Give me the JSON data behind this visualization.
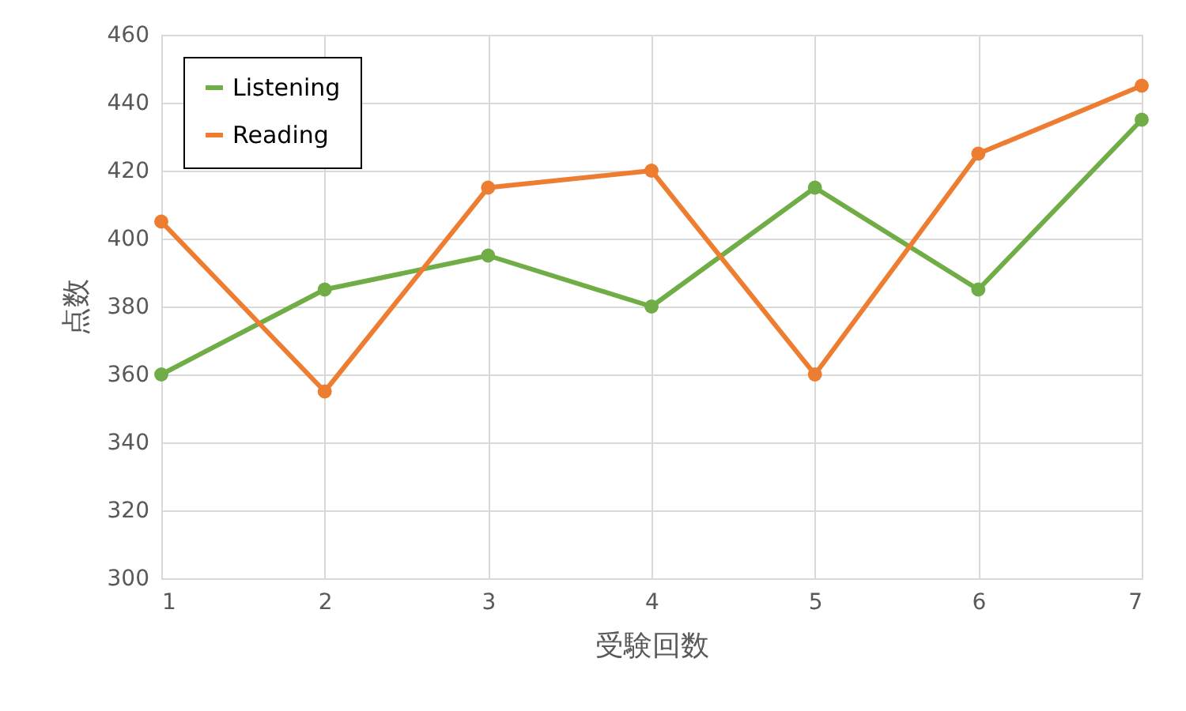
{
  "chart_data": {
    "type": "line",
    "xlabel": "受験回数",
    "ylabel": "点数",
    "x": [
      1,
      2,
      3,
      4,
      5,
      6,
      7
    ],
    "xlim": [
      1,
      7
    ],
    "xticks": [
      1,
      2,
      3,
      4,
      5,
      6,
      7
    ],
    "ylim": [
      300,
      460
    ],
    "yticks": [
      300,
      320,
      340,
      360,
      380,
      400,
      420,
      440,
      460
    ],
    "grid": true,
    "legend": "top left",
    "marker": "circle",
    "line_style": "solid",
    "series": [
      {
        "name": "Listening",
        "color": "#70ad47",
        "values": [
          360,
          385,
          395,
          380,
          415,
          385,
          435
        ]
      },
      {
        "name": "Reading",
        "color": "#ed7d31",
        "values": [
          405,
          355,
          415,
          420,
          360,
          425,
          445
        ]
      }
    ]
  }
}
